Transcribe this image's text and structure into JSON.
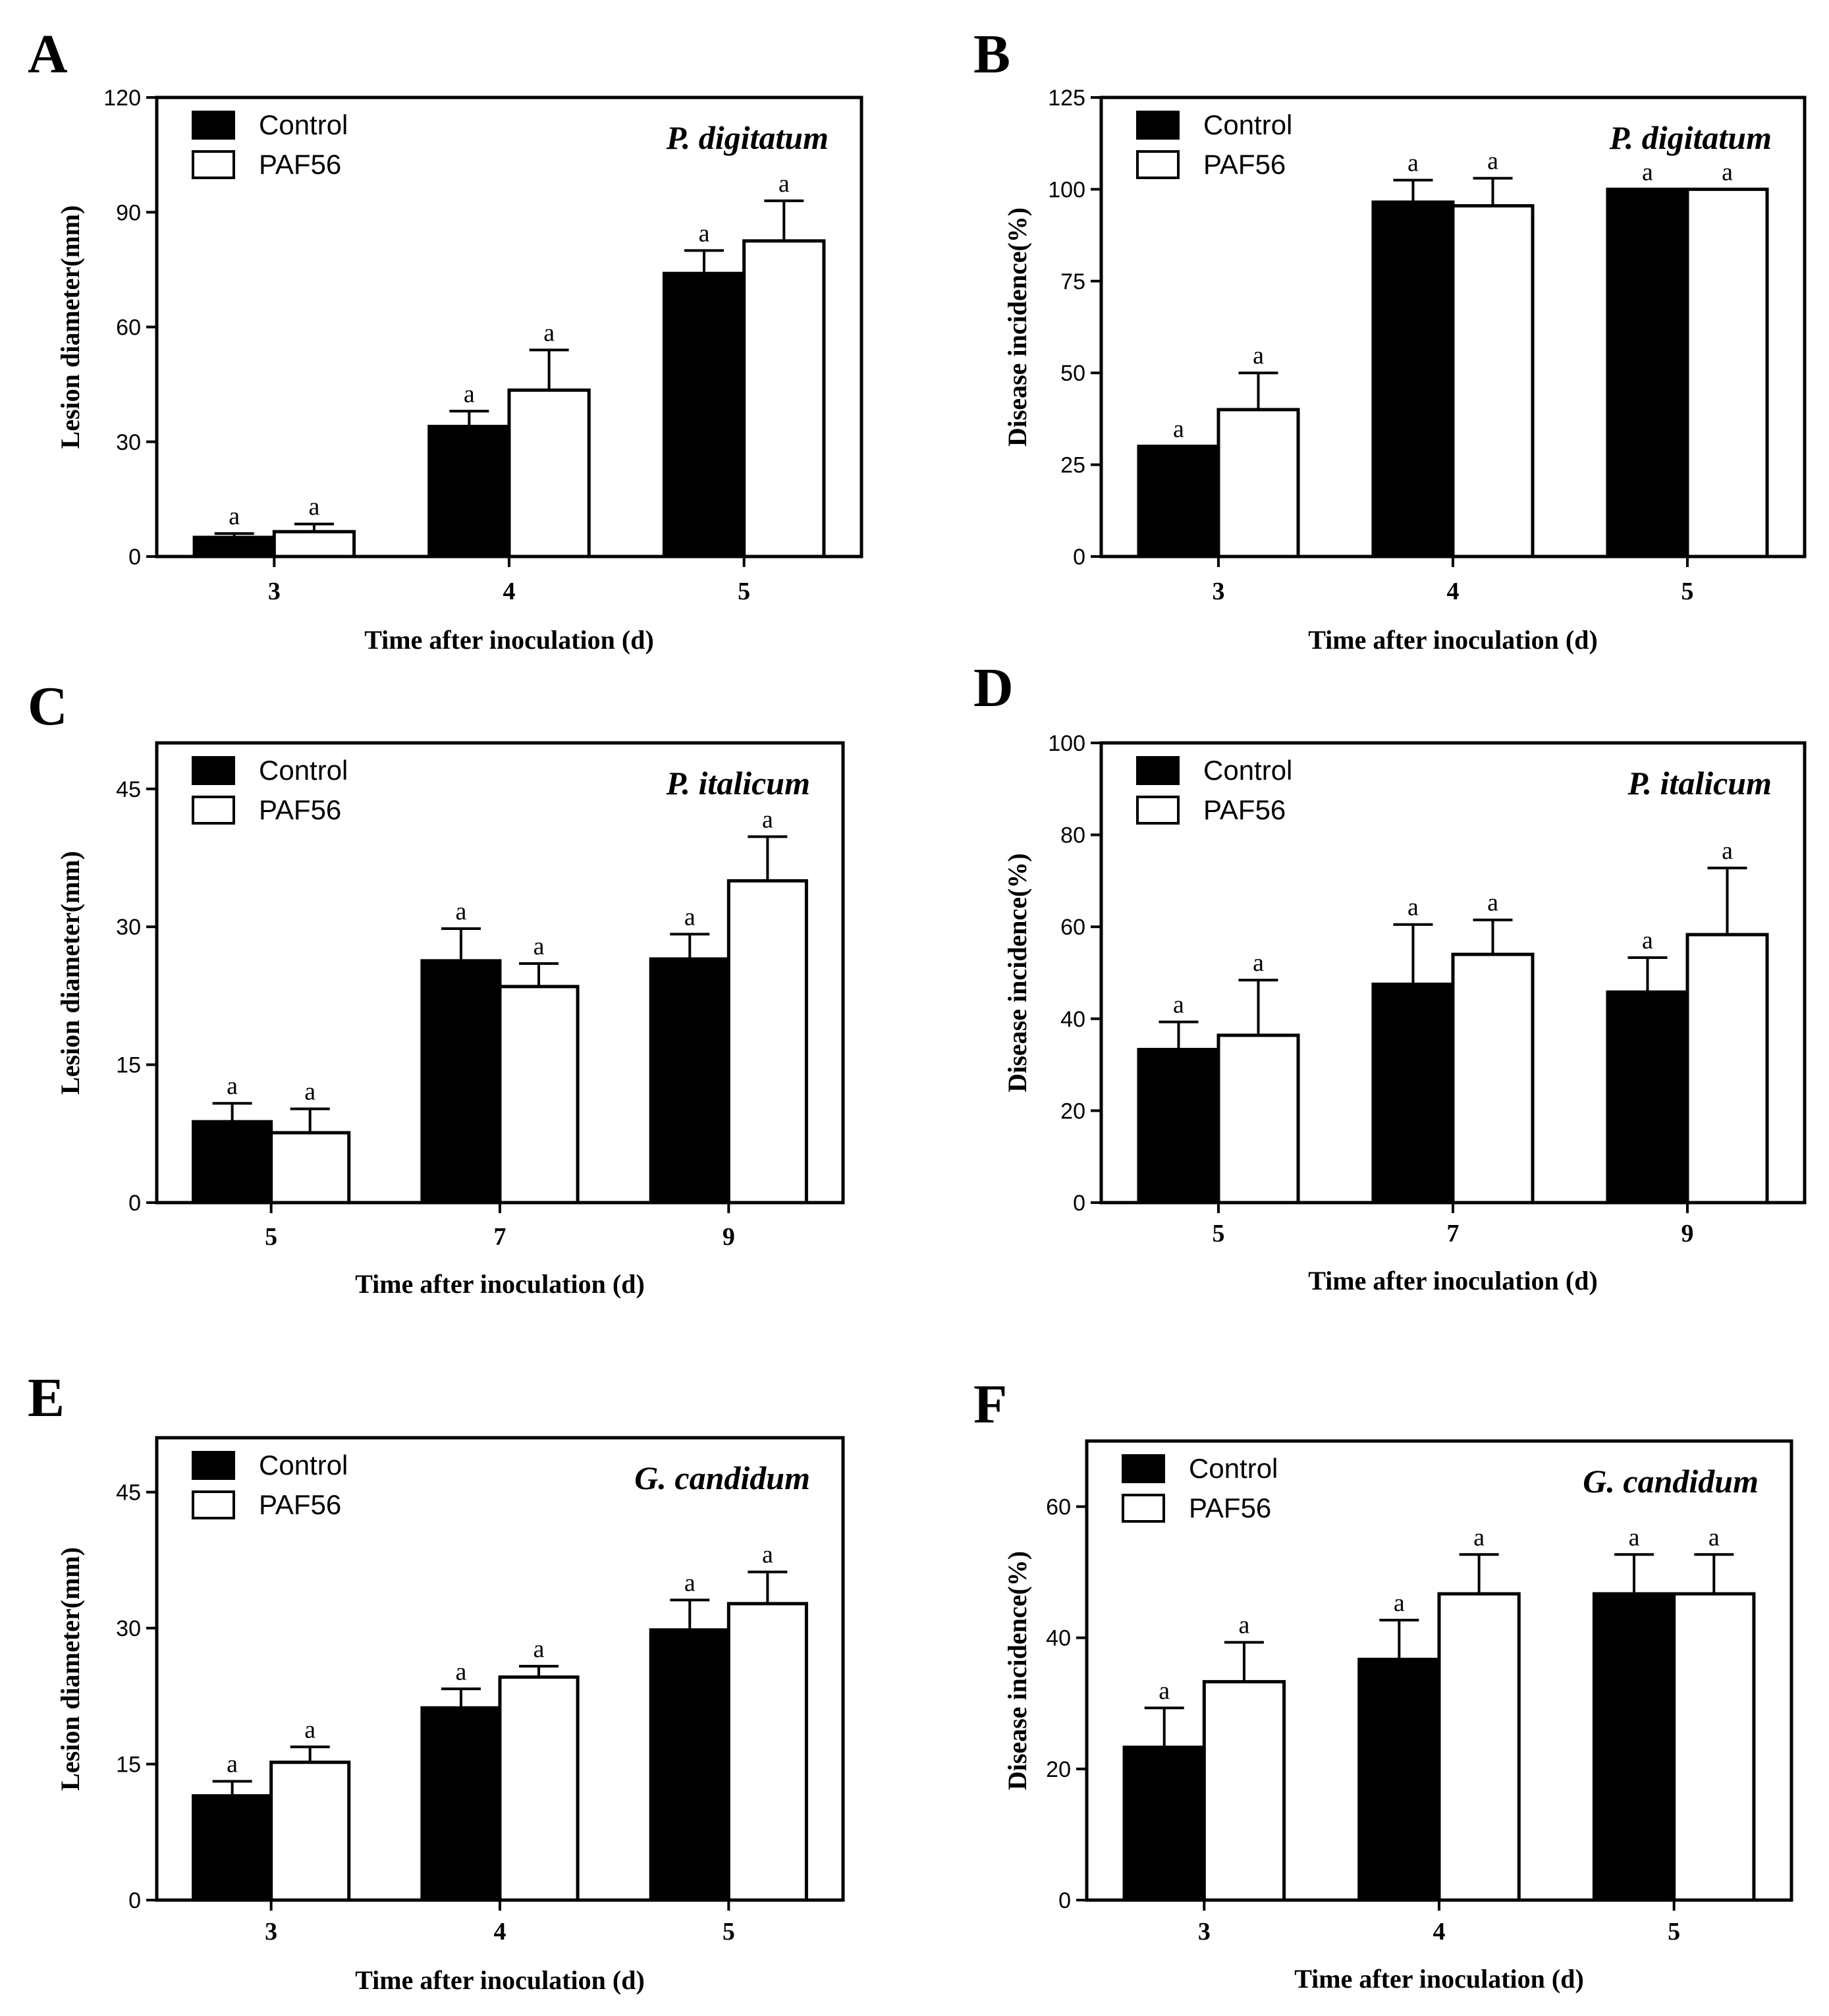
{
  "figure": {
    "series_names": [
      "Control",
      "PAF56"
    ],
    "series_colors": [
      "#000000",
      "#ffffff"
    ],
    "x_axis_title": "Time after inoculation (d)"
  },
  "chart_data": [
    {
      "panel": "A",
      "type": "bar",
      "species": "P. digitatum",
      "ylabel": "Lesion diameter(mm)",
      "xlabel": "Time after inoculation (d)",
      "ylim": [
        0,
        120
      ],
      "yticks": [
        0,
        30,
        60,
        90,
        120
      ],
      "categories": [
        "3",
        "4",
        "5"
      ],
      "series": [
        {
          "name": "Control",
          "values": [
            5,
            34,
            74
          ],
          "errors": [
            1,
            4,
            6
          ],
          "labels": [
            "a",
            "a",
            "a"
          ]
        },
        {
          "name": "PAF56",
          "values": [
            6.5,
            43.5,
            82.5
          ],
          "errors": [
            2,
            10.5,
            10.5
          ],
          "labels": [
            "a",
            "a",
            "a"
          ]
        }
      ],
      "legend": "top-left"
    },
    {
      "panel": "B",
      "type": "bar",
      "species": "P. digitatum",
      "ylabel": "Disease incidence(%)",
      "xlabel": "Time after inoculation (d)",
      "ylim": [
        0,
        125
      ],
      "yticks": [
        0,
        25,
        50,
        75,
        100,
        125
      ],
      "categories": [
        "3",
        "4",
        "5"
      ],
      "series": [
        {
          "name": "Control",
          "values": [
            30,
            96.5,
            100
          ],
          "errors": [
            0,
            6,
            0
          ],
          "labels": [
            "a",
            "a",
            "a"
          ]
        },
        {
          "name": "PAF56",
          "values": [
            40,
            95.5,
            100
          ],
          "errors": [
            10,
            7.5,
            0
          ],
          "labels": [
            "a",
            "a",
            "a"
          ]
        }
      ],
      "legend": "top-left"
    },
    {
      "panel": "C",
      "type": "bar",
      "species": "P. italicum",
      "ylabel": "Lesion diameter(mm)",
      "xlabel": "Time after inoculation (d)",
      "ylim": [
        0,
        50
      ],
      "yticks": [
        0,
        15,
        30,
        45
      ],
      "categories": [
        "5",
        "7",
        "9"
      ],
      "series": [
        {
          "name": "Control",
          "values": [
            8.8,
            26.3,
            26.5
          ],
          "errors": [
            2,
            3.5,
            2.7
          ],
          "labels": [
            "a",
            "a",
            "a"
          ]
        },
        {
          "name": "PAF56",
          "values": [
            7.6,
            23.5,
            35
          ],
          "errors": [
            2.6,
            2.5,
            4.8
          ],
          "labels": [
            "a",
            "a",
            "a"
          ]
        }
      ],
      "legend": "top-left"
    },
    {
      "panel": "D",
      "type": "bar",
      "species": "P. italicum",
      "ylabel": "Disease incidence(%)",
      "xlabel": "Time after inoculation (d)",
      "ylim": [
        0,
        100
      ],
      "yticks": [
        0,
        20,
        40,
        60,
        80,
        100
      ],
      "categories": [
        "5",
        "7",
        "9"
      ],
      "series": [
        {
          "name": "Control",
          "values": [
            33.3,
            47.5,
            45.8
          ],
          "errors": [
            6,
            13,
            7.5
          ],
          "labels": [
            "a",
            "a",
            "a"
          ]
        },
        {
          "name": "PAF56",
          "values": [
            36.4,
            54,
            58.3
          ],
          "errors": [
            12,
            7.5,
            14.5
          ],
          "labels": [
            "a",
            "a",
            "a"
          ]
        }
      ],
      "legend": "top-left"
    },
    {
      "panel": "E",
      "type": "bar",
      "species": "G. candidum",
      "ylabel": "Lesion diameter(mm)",
      "xlabel": "Time after inoculation (d)",
      "ylim": [
        0,
        51
      ],
      "yticks": [
        0,
        15,
        30,
        45
      ],
      "categories": [
        "3",
        "4",
        "5"
      ],
      "series": [
        {
          "name": "Control",
          "values": [
            11.5,
            21.2,
            29.8
          ],
          "errors": [
            1.6,
            2.1,
            3.3
          ],
          "labels": [
            "a",
            "a",
            "a"
          ]
        },
        {
          "name": "PAF56",
          "values": [
            15.2,
            24.6,
            32.7
          ],
          "errors": [
            1.7,
            1.2,
            3.5
          ],
          "labels": [
            "a",
            "a",
            "a"
          ]
        }
      ],
      "legend": "top-left"
    },
    {
      "panel": "F",
      "type": "bar",
      "species": "G. candidum",
      "ylabel": "Disease incidence(%)",
      "xlabel": "Time after inoculation (d)",
      "ylim": [
        0,
        70
      ],
      "yticks": [
        0,
        20,
        40,
        60
      ],
      "categories": [
        "3",
        "4",
        "5"
      ],
      "series": [
        {
          "name": "Control",
          "values": [
            23.3,
            36.7,
            46.7
          ],
          "errors": [
            6,
            6,
            6
          ],
          "labels": [
            "a",
            "a",
            "a"
          ]
        },
        {
          "name": "PAF56",
          "values": [
            33.3,
            46.7,
            46.7
          ],
          "errors": [
            6,
            6,
            6
          ],
          "labels": [
            "a",
            "a",
            "a"
          ]
        }
      ],
      "legend": "top-left"
    }
  ]
}
